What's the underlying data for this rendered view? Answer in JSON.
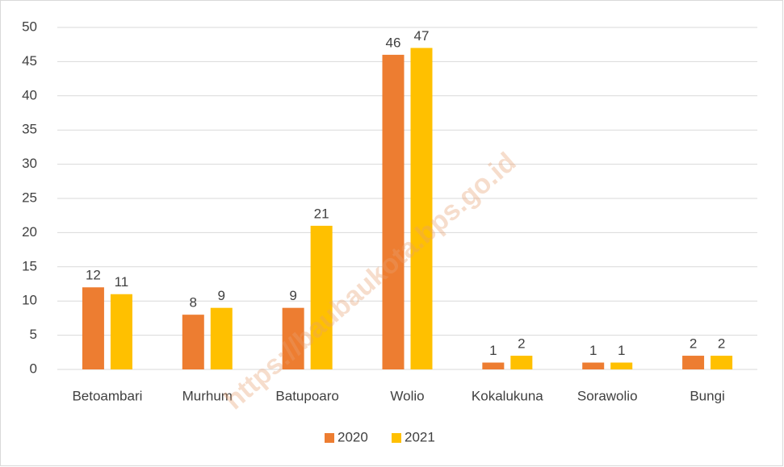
{
  "chart_data": {
    "type": "bar",
    "categories": [
      "Betoambari",
      "Murhum",
      "Batupoaro",
      "Wolio",
      "Kokalukuna",
      "Sorawolio",
      "Bungi"
    ],
    "series": [
      {
        "name": "2020",
        "color": "#ed7d31",
        "values": [
          12,
          8,
          9,
          46,
          1,
          1,
          2
        ]
      },
      {
        "name": "2021",
        "color": "#ffc000",
        "values": [
          11,
          9,
          21,
          47,
          2,
          1,
          2
        ]
      }
    ],
    "ylim": [
      0,
      50
    ],
    "yticks": [
      0,
      5,
      10,
      15,
      20,
      25,
      30,
      35,
      40,
      45,
      50
    ],
    "grid": true,
    "legend": "bottom",
    "watermark": "https://baubaukota.bps.go.id"
  }
}
